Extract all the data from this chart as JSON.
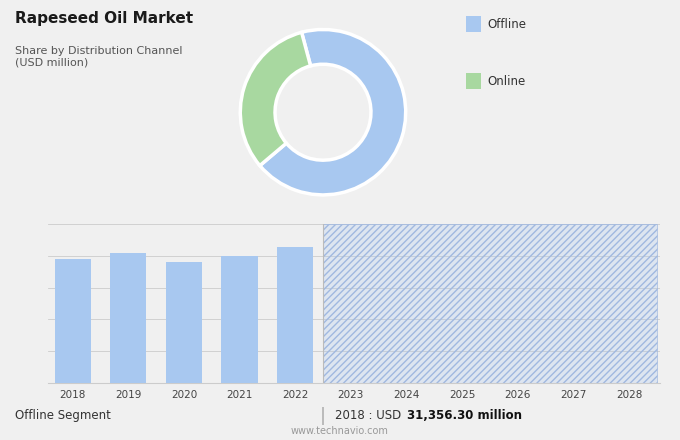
{
  "title": "Rapeseed Oil Market",
  "subtitle": "Share by Distribution Channel\n(USD million)",
  "top_bg_color": "#dcdcdc",
  "bottom_bg_color": "#f0f0f0",
  "pie_values": [
    68,
    32
  ],
  "pie_colors": [
    "#a8c8f0",
    "#a8d8a0"
  ],
  "pie_labels": [
    "Offline",
    "Online"
  ],
  "legend_colors": [
    "#a8c8f0",
    "#a8d8a0"
  ],
  "bar_years": [
    2018,
    2019,
    2020,
    2021,
    2022
  ],
  "bar_values": [
    0.78,
    0.82,
    0.76,
    0.8,
    0.86
  ],
  "forecast_years": [
    2023,
    2024,
    2025,
    2026,
    2027,
    2028
  ],
  "bar_color": "#a8c8f0",
  "forecast_color": "#a8c8f0",
  "bar_ylim": [
    0,
    1.0
  ],
  "footer_left": "Offline Segment",
  "footer_value": "2018 : USD ",
  "footer_bold": "31,356.30 million",
  "footer_website": "www.technavio.com",
  "grid_color": "#cccccc",
  "hatch_color": "#a0b8e0"
}
